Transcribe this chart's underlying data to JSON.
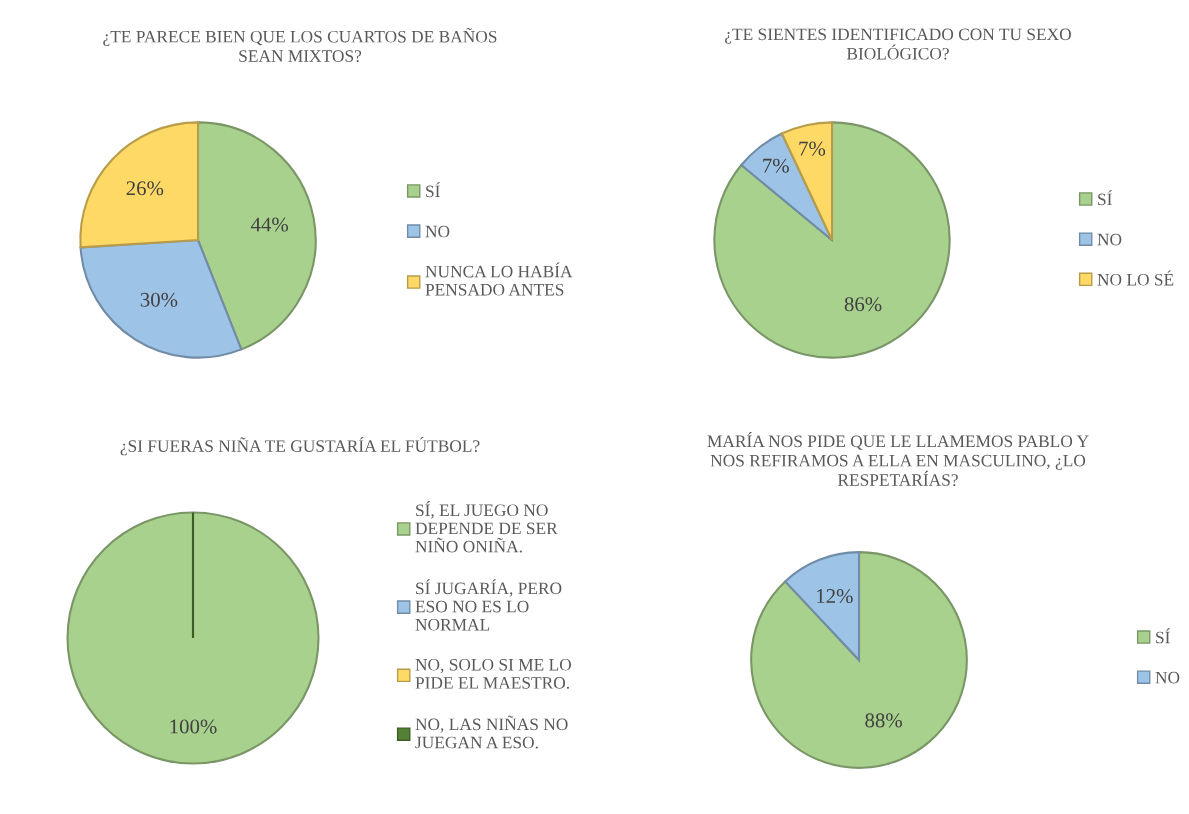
{
  "chart_data": [
    {
      "type": "pie",
      "title": "¿TE PARECE BIEN QUE LOS CUARTOS DE BAÑOS\nSEAN MIXTOS?",
      "categories": [
        "SÍ",
        "NO",
        "NUNCA LO HABÍA\nPENSADO ANTES"
      ],
      "values": [
        44,
        30,
        26
      ],
      "colors": [
        "#a9d18e",
        "#9dc3e6",
        "#ffd966"
      ],
      "value_labels": [
        "44%",
        "30%",
        "26%"
      ],
      "legend": "right"
    },
    {
      "type": "pie",
      "title": "¿TE SIENTES IDENTIFICADO CON TU SEXO\nBIOLÓGICO?",
      "categories": [
        "SÍ",
        "NO",
        "NO LO SÉ"
      ],
      "values": [
        86,
        7,
        7
      ],
      "colors": [
        "#a9d18e",
        "#9dc3e6",
        "#ffd966"
      ],
      "value_labels": [
        "86%",
        "7%",
        "7%"
      ],
      "legend": "right"
    },
    {
      "type": "pie",
      "title": "¿SI FUERAS NIÑA TE GUSTARÍA EL FÚTBOL?",
      "categories": [
        "SÍ, EL JUEGO NO\nDEPENDE DE SER\nNIÑO ONIÑA.",
        "SÍ JUGARÍA, PERO\nESO NO ES LO\nNORMAL",
        "NO, SOLO SI ME LO\nPIDE EL MAESTRO.",
        "NO, LAS NIÑAS NO\nJUEGAN A ESO."
      ],
      "values": [
        100,
        0,
        0,
        0
      ],
      "colors": [
        "#a9d18e",
        "#9dc3e6",
        "#ffd966",
        "#548235"
      ],
      "value_labels": [
        "100%",
        null,
        null,
        null
      ],
      "legend": "right"
    },
    {
      "type": "pie",
      "title": "MARÍA NOS PIDE QUE LE LLAMEMOS PABLO Y\nNOS REFIRAMOS A ELLA EN MASCULINO, ¿LO\nRESPETARÍAS?",
      "categories": [
        "SÍ",
        "NO"
      ],
      "values": [
        88,
        12
      ],
      "colors": [
        "#a9d18e",
        "#9dc3e6"
      ],
      "value_labels": [
        "88%",
        "12%"
      ],
      "legend": "right"
    }
  ]
}
